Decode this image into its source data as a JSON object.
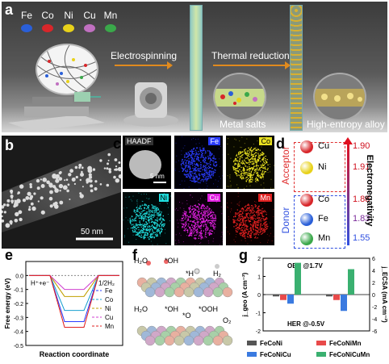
{
  "panel_a": {
    "label": "a",
    "elements": [
      {
        "symbol": "Fe",
        "color": "#2a5fd8"
      },
      {
        "symbol": "Co",
        "color": "#d8262a"
      },
      {
        "symbol": "Ni",
        "color": "#e8d21a"
      },
      {
        "symbol": "Cu",
        "color": "#c070c0"
      },
      {
        "symbol": "Mn",
        "color": "#3aa84a"
      }
    ],
    "step1": "Electrospinning",
    "step2": "Thermal reduction",
    "caption_salts": "Metal salts",
    "caption_alloy": "High-entropy alloy"
  },
  "panel_b": {
    "label": "b",
    "scale": "50 nm"
  },
  "panel_c": {
    "label": "c",
    "maps": [
      {
        "label": "HAADF",
        "color": "#cccccc",
        "bg": "#000000"
      },
      {
        "label": "Fe",
        "color": "#2a3cff",
        "bg": "#00000a"
      },
      {
        "label": "Co",
        "color": "#e8e020",
        "bg": "#0a0a00"
      },
      {
        "label": "Ni",
        "color": "#20e0e0",
        "bg": "#000a0a"
      },
      {
        "label": "Cu",
        "color": "#e020e0",
        "bg": "#0a000a"
      },
      {
        "label": "Mn",
        "color": "#e02020",
        "bg": "#0a0000"
      }
    ],
    "scale": "5 nm"
  },
  "panel_d": {
    "label": "d",
    "acceptor": "Acceptor",
    "donor": "Donor",
    "axis": "Electronegativity",
    "items": [
      {
        "symbol": "Cu",
        "value": "1.90",
        "color": "#d8262a"
      },
      {
        "symbol": "Ni",
        "value": "1.91",
        "color": "#e8d21a"
      },
      {
        "symbol": "Co",
        "value": "1.88",
        "color": "#d8262a"
      },
      {
        "symbol": "Fe",
        "value": "1.83",
        "color": "#2a5fd8"
      },
      {
        "symbol": "Mn",
        "value": "1.55",
        "color": "#3aa84a"
      }
    ]
  },
  "panel_e": {
    "label": "e",
    "ylabel": "Free energy (eV)",
    "xlabel": "Reaction coordinate",
    "left_state": "H⁺+e⁻",
    "right_state": "1/2H₂",
    "yticks": [
      "0.0",
      "-0.1",
      "-0.2",
      "-0.3",
      "-0.4",
      "-0.5"
    ],
    "legend": [
      {
        "name": "Fe",
        "color": "#2a3cff"
      },
      {
        "name": "Co",
        "color": "#1aa0d0"
      },
      {
        "name": "Ni",
        "color": "#c0a000"
      },
      {
        "name": "Cu",
        "color": "#d040d0"
      },
      {
        "name": "Mn",
        "color": "#e02020"
      }
    ]
  },
  "panel_f": {
    "label": "f",
    "row1": [
      "H₂O",
      "*OH",
      "*H",
      "H₂"
    ],
    "row2": [
      "H₂O",
      "*OH",
      "*O",
      "*OOH",
      "O₂"
    ]
  },
  "panel_g": {
    "label": "g",
    "oer": "OER @1.7V",
    "her": "HER @-0.5V",
    "ylabel_left": "j_geo (A cm⁻²)",
    "ylabel_right": "j_ECSA (mA cm⁻²)",
    "yticks_left": [
      "2",
      "1",
      "0",
      "-1",
      "-2"
    ],
    "yticks_right": [
      "6",
      "4",
      "2",
      "0",
      "-2",
      "-4",
      "-6"
    ],
    "legend": [
      {
        "name": "FeCoNi",
        "color": "#555555"
      },
      {
        "name": "FeCoNiMn",
        "color": "#e84a4a"
      },
      {
        "name": "FeCoNiCu",
        "color": "#3a7ae0"
      },
      {
        "name": "FeCoNiCuMn",
        "color": "#3ab070"
      }
    ]
  },
  "chart_data": [
    {
      "type": "line",
      "xlabel": "Reaction coordinate",
      "ylabel": "Free energy (eV)",
      "ylim": [
        -0.5,
        0.1
      ],
      "categories": [
        "H⁺+e⁻",
        "H*",
        "1/2H₂"
      ],
      "series": [
        {
          "name": "Fe",
          "values": [
            0,
            -0.33,
            0
          ]
        },
        {
          "name": "Co",
          "values": [
            0,
            -0.25,
            0
          ]
        },
        {
          "name": "Ni",
          "values": [
            0,
            -0.15,
            0
          ]
        },
        {
          "name": "Cu",
          "values": [
            0,
            -0.1,
            0
          ]
        },
        {
          "name": "Mn",
          "values": [
            0,
            -0.37,
            0
          ]
        }
      ]
    },
    {
      "type": "bar",
      "ylabel": "j_geo (A cm⁻²)",
      "ylim": [
        -2,
        2
      ],
      "categories": [
        "OER @1.7V (j_geo)",
        "OER @1.7V (j_ECSA)"
      ],
      "series": [
        {
          "name": "FeCoNi",
          "values": [
            -0.1,
            -0.1
          ]
        },
        {
          "name": "FeCoNiMn",
          "values": [
            -0.3,
            -0.3
          ]
        },
        {
          "name": "FeCoNiCu",
          "values": [
            -0.5,
            -0.9
          ]
        },
        {
          "name": "FeCoNiCuMn",
          "values": [
            1.75,
            1.4
          ]
        }
      ]
    }
  ]
}
